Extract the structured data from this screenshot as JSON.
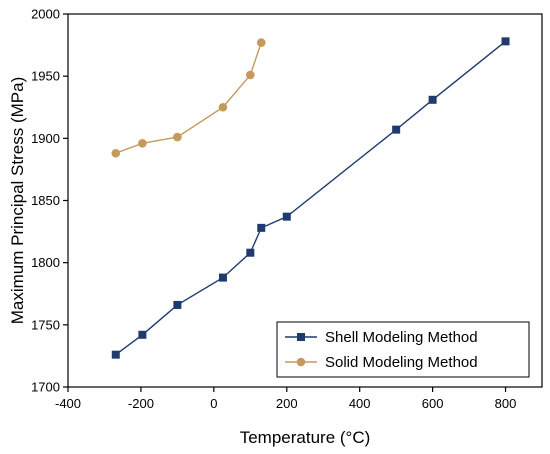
{
  "chart_data": {
    "type": "line",
    "xlabel": "Temperature (°C)",
    "ylabel": "Maximum Principal Stress (MPa)",
    "xlim": [
      -400,
      900
    ],
    "ylim": [
      1700,
      2000
    ],
    "xticks": [
      "-400",
      "-200",
      "0",
      "200",
      "400",
      "600",
      "800"
    ],
    "yticks": [
      "1700",
      "1750",
      "1800",
      "1850",
      "1900",
      "1950",
      "2000"
    ],
    "grid": false,
    "legend_position": "bottom-right",
    "series": [
      {
        "name": "Shell Modeling Method",
        "color": "#1f3a6e",
        "marker": "square",
        "x": [
          -269,
          -196,
          -100,
          25,
          100,
          130,
          200,
          500,
          600,
          800
        ],
        "y": [
          1726,
          1742,
          1766,
          1788,
          1808,
          1828,
          1837,
          1907,
          1931,
          1978
        ]
      },
      {
        "name": "Solid Modeling Method",
        "color": "#c49a5b",
        "marker": "circle",
        "x": [
          -269,
          -196,
          -100,
          25,
          100,
          130
        ],
        "y": [
          1888,
          1896,
          1901,
          1925,
          1951,
          1977
        ]
      }
    ]
  }
}
